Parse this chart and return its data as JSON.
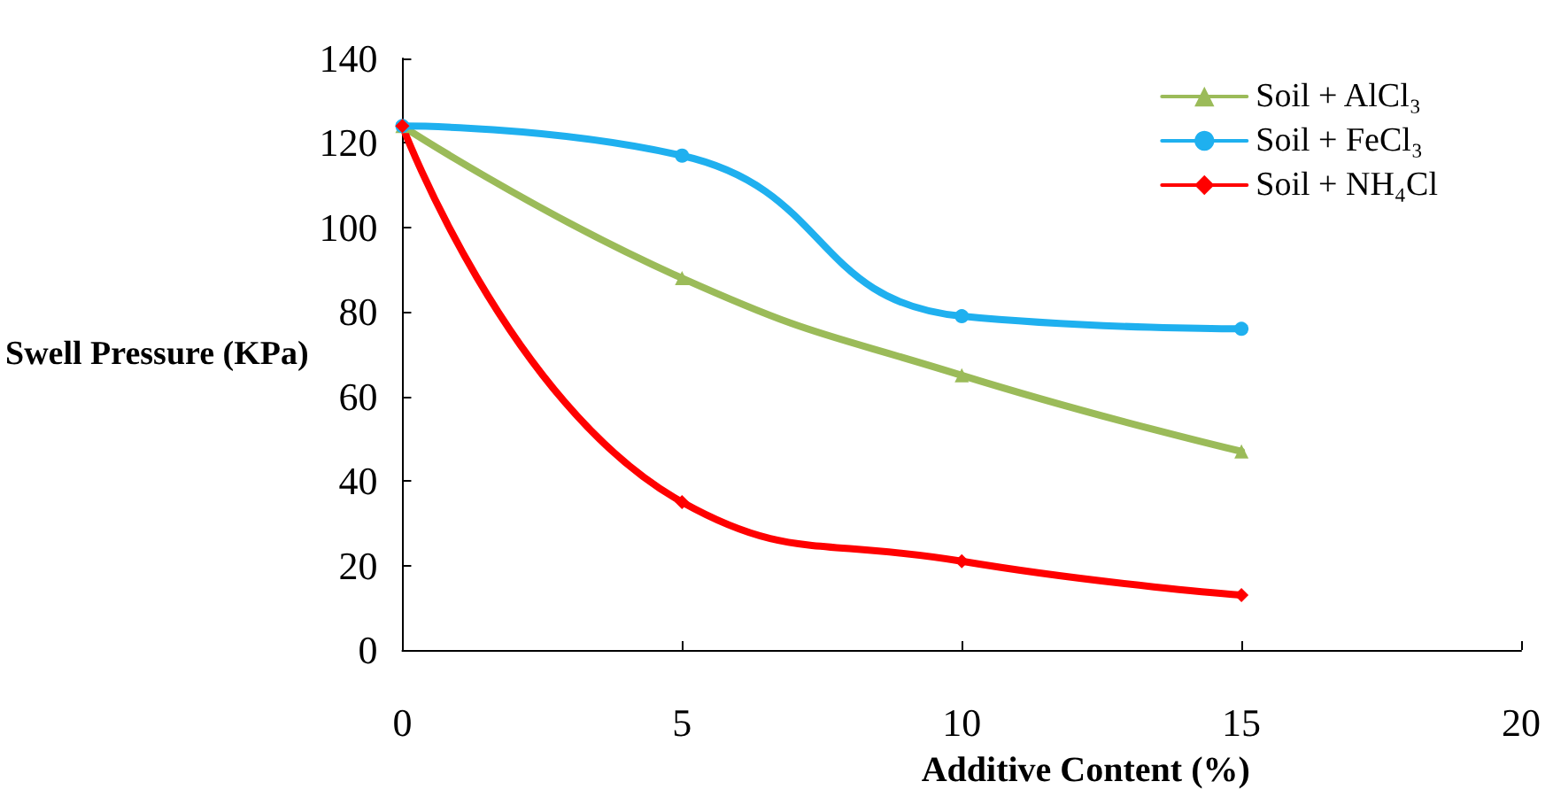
{
  "chart_data": {
    "type": "line",
    "xlabel": "Additive Content (%)",
    "ylabel": "Swell Pressure (KPa)",
    "xlim": [
      0,
      20
    ],
    "xticks": [
      0,
      5,
      10,
      15,
      20
    ],
    "ylim": [
      0,
      140
    ],
    "yticks": [
      0,
      20,
      40,
      60,
      80,
      100,
      120,
      140
    ],
    "x": [
      0,
      5,
      10,
      15
    ],
    "grid": false,
    "legend": "top right",
    "series": [
      {
        "name": "Soil + AlCl₃",
        "color": "#9bbb59",
        "marker": "triangle",
        "values": [
          124,
          88,
          65,
          47
        ]
      },
      {
        "name": "Soil + FeCl₃",
        "color": "#1fb0ef",
        "marker": "circle",
        "values": [
          124,
          117,
          79,
          76
        ]
      },
      {
        "name": "Soil + NH₄Cl",
        "color": "#ff0000",
        "marker": "diamond",
        "values": [
          124,
          35,
          21,
          13
        ]
      }
    ]
  }
}
